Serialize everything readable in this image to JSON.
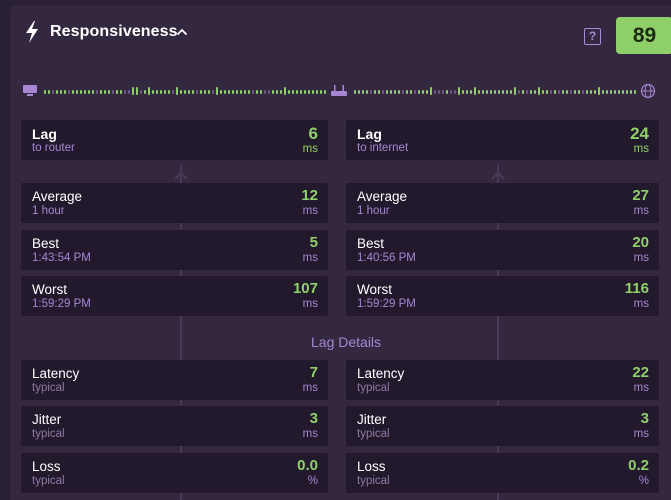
{
  "header": {
    "title": "Responsiveness",
    "help": "?",
    "score": "89"
  },
  "colors": {
    "accent_green": "#8fcf6a",
    "purple": "#a786d4",
    "card_bg": "#221a2c",
    "panel_bg": "#33283f"
  },
  "icons": {
    "bolt": "lightning-bolt-icon",
    "chevron": "chevron-up-icon",
    "computer": "computer-icon",
    "router": "router-icon",
    "globe": "globe-icon"
  },
  "lag": {
    "router": {
      "label": "Lag",
      "sub": "to router",
      "value": "6",
      "unit": "ms"
    },
    "internet": {
      "label": "Lag",
      "sub": "to internet",
      "value": "24",
      "unit": "ms"
    }
  },
  "router_stats": [
    {
      "label": "Average",
      "sub": "1 hour",
      "value": "12",
      "unit": "ms"
    },
    {
      "label": "Best",
      "sub": "1:43:54 PM",
      "value": "5",
      "unit": "ms"
    },
    {
      "label": "Worst",
      "sub": "1:59:29 PM",
      "value": "107",
      "unit": "ms"
    }
  ],
  "internet_stats": [
    {
      "label": "Average",
      "sub": "1 hour",
      "value": "27",
      "unit": "ms"
    },
    {
      "label": "Best",
      "sub": "1:40:56 PM",
      "value": "20",
      "unit": "ms"
    },
    {
      "label": "Worst",
      "sub": "1:59:29 PM",
      "value": "116",
      "unit": "ms"
    }
  ],
  "details_title": "Lag Details",
  "router_details": [
    {
      "label": "Latency",
      "sub": "typical",
      "value": "7",
      "unit": "ms"
    },
    {
      "label": "Jitter",
      "sub": "typical",
      "value": "3",
      "unit": "ms"
    },
    {
      "label": "Loss",
      "sub": "typical",
      "value": "0.0",
      "unit": "%"
    }
  ],
  "internet_details": [
    {
      "label": "Latency",
      "sub": "typical",
      "value": "22",
      "unit": "ms"
    },
    {
      "label": "Jitter",
      "sub": "typical",
      "value": "3",
      "unit": "ms"
    },
    {
      "label": "Loss",
      "sub": "typical",
      "value": "0.2",
      "unit": "%"
    }
  ]
}
